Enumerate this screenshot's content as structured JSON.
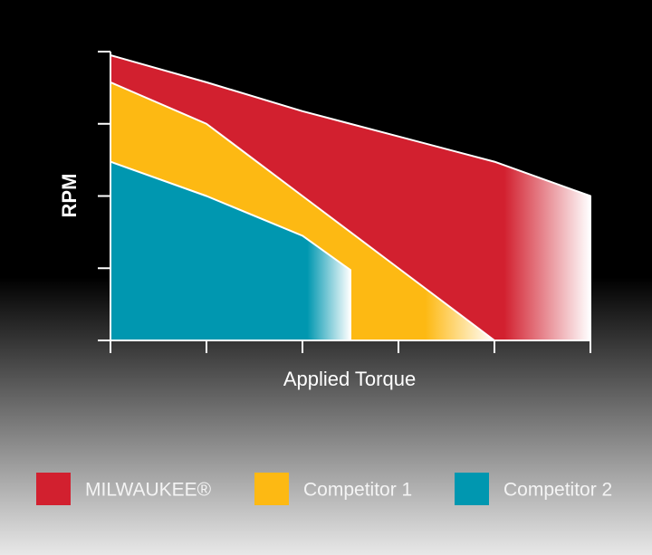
{
  "chart_data": {
    "type": "area",
    "y_label": "RPM",
    "x_label": "Applied Torque",
    "xlim": [
      0,
      5
    ],
    "ylim": [
      0,
      4
    ],
    "xticks": [
      0,
      1,
      2,
      3,
      4,
      5
    ],
    "yticks": [
      0,
      1,
      2,
      3,
      4
    ],
    "series": [
      {
        "name": "MILWAUKEE®",
        "color": "#d2202f",
        "x": [
          0,
          1,
          2,
          3,
          4,
          5
        ],
        "values": [
          3.95,
          3.575,
          3.175,
          2.825,
          2.475,
          2.0
        ]
      },
      {
        "name": "Competitor 1",
        "color": "#fdb913",
        "x": [
          0,
          1,
          2,
          3,
          4
        ],
        "values": [
          3.575,
          3.0,
          2.0,
          1.0,
          0
        ]
      },
      {
        "name": "Competitor 2",
        "color": "#0097b0",
        "x": [
          0,
          1,
          2,
          2.5
        ],
        "values": [
          2.475,
          2.0,
          1.45,
          0.975
        ]
      }
    ]
  }
}
